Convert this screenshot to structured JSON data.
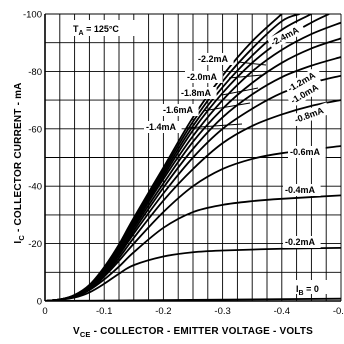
{
  "chart_data": {
    "type": "line",
    "title": "",
    "xlabel": "V_CE - COLLECTOR - EMITTER VOLTAGE - VOLTS",
    "xlabel_main": "V",
    "xlabel_sub": "CE",
    "xlabel_rest": " - COLLECTOR - EMITTER VOLTAGE - VOLTS",
    "ylabel": "I_C - COLLECTOR CURRENT - mA",
    "ylabel_main": "I",
    "ylabel_sub": "C",
    "ylabel_rest": " - COLLECTOR CURRENT - mA",
    "annotation": {
      "main": "T",
      "sub": "A",
      "rest": " = 125°C"
    },
    "xlim": [
      0,
      -0.5
    ],
    "ylim": [
      0,
      -100
    ],
    "x_ticks": [
      {
        "value": 0,
        "label": "0"
      },
      {
        "value": -0.1,
        "label": "-0.1"
      },
      {
        "value": -0.2,
        "label": "-0.2"
      },
      {
        "value": -0.3,
        "label": "-0.3"
      },
      {
        "value": -0.4,
        "label": "-0.4"
      },
      {
        "value": -0.5,
        "label": "-0.5"
      }
    ],
    "y_ticks": [
      {
        "value": 0,
        "label": "0"
      },
      {
        "value": -20,
        "label": "-20"
      },
      {
        "value": -40,
        "label": "-40"
      },
      {
        "value": -60,
        "label": "-60"
      },
      {
        "value": -80,
        "label": "-80"
      },
      {
        "value": -100,
        "label": "-100"
      }
    ],
    "grid": true,
    "legend": "none",
    "series": [
      {
        "name": "I_B = 0",
        "label": "I_B = 0",
        "points": [
          [
            0,
            0
          ],
          [
            -0.5,
            -0.8
          ]
        ]
      },
      {
        "name": "-0.2mA",
        "label": "-0.2mA",
        "points": [
          [
            0,
            0
          ],
          [
            -0.025,
            -0.4
          ],
          [
            -0.05,
            -1.2
          ],
          [
            -0.075,
            -3
          ],
          [
            -0.1,
            -6
          ],
          [
            -0.125,
            -9.5
          ],
          [
            -0.15,
            -12.5
          ],
          [
            -0.2,
            -15.5
          ],
          [
            -0.25,
            -17
          ],
          [
            -0.3,
            -17.6
          ],
          [
            -0.4,
            -18.2
          ],
          [
            -0.5,
            -18.5
          ]
        ]
      },
      {
        "name": "-0.4mA",
        "label": "-0.4mA",
        "points": [
          [
            0,
            0
          ],
          [
            -0.025,
            -0.5
          ],
          [
            -0.05,
            -1.5
          ],
          [
            -0.075,
            -3.8
          ],
          [
            -0.1,
            -7.5
          ],
          [
            -0.125,
            -12
          ],
          [
            -0.15,
            -17
          ],
          [
            -0.2,
            -25.5
          ],
          [
            -0.25,
            -31
          ],
          [
            -0.3,
            -33.5
          ],
          [
            -0.35,
            -34.8
          ],
          [
            -0.4,
            -35.6
          ],
          [
            -0.5,
            -36.8
          ]
        ]
      },
      {
        "name": "-0.6mA",
        "label": "-0.6mA",
        "points": [
          [
            0,
            0
          ],
          [
            -0.025,
            -0.5
          ],
          [
            -0.05,
            -1.6
          ],
          [
            -0.075,
            -4
          ],
          [
            -0.1,
            -8.5
          ],
          [
            -0.125,
            -14
          ],
          [
            -0.15,
            -20
          ],
          [
            -0.2,
            -31
          ],
          [
            -0.25,
            -40
          ],
          [
            -0.3,
            -46
          ],
          [
            -0.35,
            -49.5
          ],
          [
            -0.4,
            -51.5
          ],
          [
            -0.5,
            -54
          ]
        ]
      },
      {
        "name": "-0.8mA",
        "label": "-0.8mA",
        "points": [
          [
            0,
            0
          ],
          [
            -0.025,
            -0.5
          ],
          [
            -0.05,
            -1.7
          ],
          [
            -0.075,
            -4.3
          ],
          [
            -0.1,
            -9
          ],
          [
            -0.125,
            -15
          ],
          [
            -0.15,
            -22
          ],
          [
            -0.2,
            -35
          ],
          [
            -0.25,
            -46
          ],
          [
            -0.3,
            -55
          ],
          [
            -0.35,
            -61
          ],
          [
            -0.4,
            -65
          ],
          [
            -0.45,
            -68
          ],
          [
            -0.5,
            -70
          ]
        ]
      },
      {
        "name": "-1.0mA",
        "label": "-1.0mA",
        "points": [
          [
            0,
            0
          ],
          [
            -0.025,
            -0.5
          ],
          [
            -0.05,
            -1.7
          ],
          [
            -0.075,
            -4.5
          ],
          [
            -0.1,
            -9.5
          ],
          [
            -0.125,
            -16
          ],
          [
            -0.15,
            -23.5
          ],
          [
            -0.2,
            -37.5
          ],
          [
            -0.25,
            -50
          ],
          [
            -0.3,
            -60
          ],
          [
            -0.35,
            -67
          ],
          [
            -0.4,
            -72.5
          ],
          [
            -0.45,
            -76
          ],
          [
            -0.5,
            -78.5
          ]
        ]
      },
      {
        "name": "-1.2mA",
        "label": "-1.2mA",
        "points": [
          [
            0,
            0
          ],
          [
            -0.025,
            -0.5
          ],
          [
            -0.05,
            -1.8
          ],
          [
            -0.075,
            -4.7
          ],
          [
            -0.1,
            -10
          ],
          [
            -0.125,
            -16.5
          ],
          [
            -0.15,
            -24.5
          ],
          [
            -0.2,
            -39.5
          ],
          [
            -0.25,
            -53
          ],
          [
            -0.3,
            -64
          ],
          [
            -0.35,
            -72
          ],
          [
            -0.4,
            -78
          ],
          [
            -0.45,
            -82
          ],
          [
            -0.5,
            -85
          ]
        ]
      },
      {
        "name": "-1.4mA",
        "label": "-1.4mA",
        "points": [
          [
            0,
            0
          ],
          [
            -0.025,
            -0.5
          ],
          [
            -0.05,
            -1.8
          ],
          [
            -0.075,
            -4.8
          ],
          [
            -0.1,
            -10.3
          ],
          [
            -0.125,
            -17.2
          ],
          [
            -0.15,
            -25.5
          ],
          [
            -0.2,
            -41
          ],
          [
            -0.25,
            -55.5
          ],
          [
            -0.3,
            -67
          ],
          [
            -0.35,
            -76
          ],
          [
            -0.4,
            -83
          ],
          [
            -0.45,
            -88
          ],
          [
            -0.5,
            -91.5
          ]
        ]
      },
      {
        "name": "-1.6mA",
        "label": "-1.6mA",
        "points": [
          [
            0,
            0
          ],
          [
            -0.025,
            -0.5
          ],
          [
            -0.05,
            -1.9
          ],
          [
            -0.075,
            -5
          ],
          [
            -0.1,
            -10.6
          ],
          [
            -0.125,
            -17.8
          ],
          [
            -0.15,
            -26.3
          ],
          [
            -0.2,
            -42.5
          ],
          [
            -0.25,
            -57.5
          ],
          [
            -0.3,
            -70
          ],
          [
            -0.35,
            -80
          ],
          [
            -0.4,
            -87.5
          ],
          [
            -0.45,
            -93
          ],
          [
            -0.5,
            -97
          ]
        ]
      },
      {
        "name": "-1.8mA",
        "label": "-1.8mA",
        "points": [
          [
            0,
            0
          ],
          [
            -0.025,
            -0.5
          ],
          [
            -0.05,
            -1.9
          ],
          [
            -0.075,
            -5.1
          ],
          [
            -0.1,
            -10.9
          ],
          [
            -0.125,
            -18.3
          ],
          [
            -0.15,
            -27
          ],
          [
            -0.2,
            -43.5
          ],
          [
            -0.25,
            -59.5
          ],
          [
            -0.3,
            -72.5
          ],
          [
            -0.35,
            -83
          ],
          [
            -0.4,
            -91
          ],
          [
            -0.45,
            -97
          ],
          [
            -0.48,
            -100
          ]
        ]
      },
      {
        "name": "-2.0mA",
        "label": "-2.0mA",
        "points": [
          [
            0,
            0
          ],
          [
            -0.025,
            -0.5
          ],
          [
            -0.05,
            -2
          ],
          [
            -0.075,
            -5.3
          ],
          [
            -0.1,
            -11.2
          ],
          [
            -0.125,
            -18.8
          ],
          [
            -0.15,
            -27.7
          ],
          [
            -0.2,
            -44.5
          ],
          [
            -0.25,
            -61
          ],
          [
            -0.3,
            -74.5
          ],
          [
            -0.35,
            -85.5
          ],
          [
            -0.4,
            -94.5
          ],
          [
            -0.45,
            -100
          ]
        ]
      },
      {
        "name": "-2.2mA",
        "label": "-2.2mA",
        "points": [
          [
            0,
            0
          ],
          [
            -0.025,
            -0.5
          ],
          [
            -0.05,
            -2
          ],
          [
            -0.075,
            -5.4
          ],
          [
            -0.1,
            -11.5
          ],
          [
            -0.125,
            -19.2
          ],
          [
            -0.15,
            -28.3
          ],
          [
            -0.2,
            -45.5
          ],
          [
            -0.25,
            -62.5
          ],
          [
            -0.3,
            -76.5
          ],
          [
            -0.35,
            -88
          ],
          [
            -0.4,
            -97.5
          ],
          [
            -0.43,
            -100
          ]
        ]
      },
      {
        "name": "-2.4mA",
        "label": "-2.4mA",
        "points": [
          [
            0,
            0
          ],
          [
            -0.025,
            -0.5
          ],
          [
            -0.05,
            -2.1
          ],
          [
            -0.075,
            -5.6
          ],
          [
            -0.1,
            -11.8
          ],
          [
            -0.125,
            -19.7
          ],
          [
            -0.15,
            -29
          ],
          [
            -0.2,
            -46.5
          ],
          [
            -0.25,
            -64
          ],
          [
            -0.3,
            -78.5
          ],
          [
            -0.35,
            -90.5
          ],
          [
            -0.4,
            -100
          ]
        ]
      }
    ]
  }
}
